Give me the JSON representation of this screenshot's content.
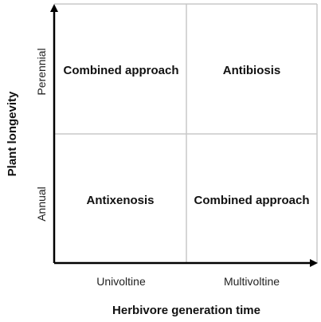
{
  "diagram": {
    "cells": {
      "top_left": "Combined approach",
      "top_right": "Antibiosis",
      "bottom_left": "Antixenosis",
      "bottom_right": "Combined approach"
    },
    "x_axis": {
      "title": "Herbivore generation time",
      "categories": [
        "Univoltine",
        "Multivoltine"
      ]
    },
    "y_axis": {
      "title": "Plant longevity",
      "categories": [
        "Annual",
        "Perennial"
      ]
    },
    "colors": {
      "axis": "#000000",
      "grid": "#c8c8c8",
      "text": "#111111"
    }
  }
}
